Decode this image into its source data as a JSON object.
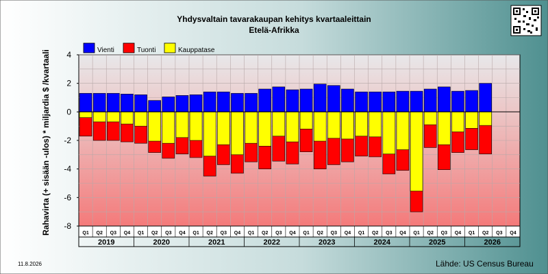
{
  "chart_data": {
    "type": "bar",
    "title": "Yhdysvaltain tavarakaupan kehitys kvartaaleittain",
    "subtitle": "Etelä-Afrikka",
    "ylabel": "Rahavirta (+ sisään -ulos)  * miljardia $ /kvartaali",
    "ylim": [
      -8,
      4
    ],
    "yticks": [
      4,
      2,
      0,
      -2,
      -4,
      -6,
      -8
    ],
    "grid": true,
    "legend_position": "top-left",
    "quarter_labels": [
      "Q1",
      "Q2",
      "Q3",
      "Q4",
      "Q1",
      "Q2",
      "Q3",
      "Q4",
      "Q1",
      "Q2",
      "Q3",
      "Q4",
      "Q1",
      "Q2",
      "Q3",
      "Q4",
      "Q1",
      "Q2",
      "Q3",
      "Q4",
      "Q1",
      "Q2",
      "Q3",
      "Q4",
      "Q1",
      "Q2",
      "Q3",
      "Q4",
      "Q1",
      "Q2",
      "Q3",
      "Q4"
    ],
    "years": [
      "2019",
      "2020",
      "2021",
      "2022",
      "2023",
      "2024",
      "2025",
      "2026"
    ],
    "series": [
      {
        "name": "Vienti",
        "color": "#0000ff",
        "values": [
          1.3,
          1.3,
          1.3,
          1.25,
          1.2,
          0.8,
          1.05,
          1.15,
          1.2,
          1.4,
          1.4,
          1.3,
          1.3,
          1.6,
          1.75,
          1.55,
          1.6,
          1.95,
          1.85,
          1.6,
          1.4,
          1.4,
          1.4,
          1.45,
          1.45,
          1.6,
          1.75,
          1.45,
          1.5,
          2.0,
          null,
          null
        ]
      },
      {
        "name": "Tuonti",
        "color": "#ff0000",
        "values": [
          -1.7,
          -2.0,
          -2.0,
          -2.1,
          -2.2,
          -2.85,
          -3.25,
          -2.95,
          -3.2,
          -4.5,
          -3.7,
          -4.3,
          -3.5,
          -4.0,
          -3.45,
          -3.65,
          -2.8,
          -4.0,
          -3.7,
          -3.5,
          -3.1,
          -3.15,
          -4.35,
          -4.1,
          -7.0,
          -2.5,
          -4.05,
          -2.85,
          -2.65,
          -2.95,
          null,
          null
        ]
      },
      {
        "name": "Kauppatase",
        "color": "#ffff00",
        "values": [
          -0.4,
          -0.7,
          -0.7,
          -0.85,
          -1.0,
          -2.05,
          -2.2,
          -1.8,
          -2.0,
          -3.1,
          -2.3,
          -3.0,
          -2.2,
          -2.4,
          -1.7,
          -2.1,
          -1.2,
          -2.05,
          -1.85,
          -1.9,
          -1.7,
          -1.75,
          -2.95,
          -2.65,
          -5.55,
          -0.9,
          -2.3,
          -1.4,
          -1.15,
          -0.95,
          null,
          null
        ]
      }
    ]
  },
  "footer": {
    "date": "11.8.2026",
    "source": "Lähde: US Census Bureau"
  }
}
